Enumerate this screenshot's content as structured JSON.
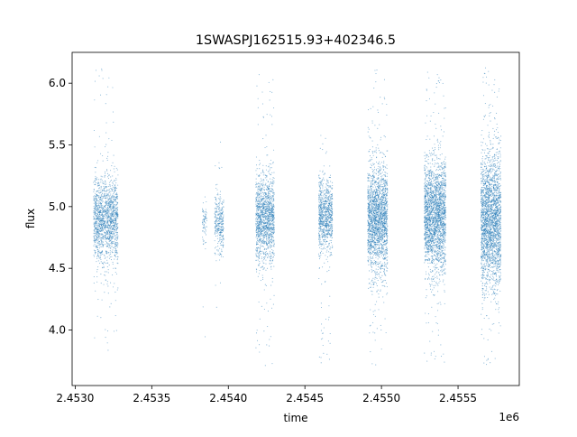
{
  "chart_data": {
    "type": "scatter",
    "title": "1SWASPJ162515.93+402346.5",
    "xlabel": "time",
    "ylabel": "flux",
    "x_offset_label": "1e6",
    "xlim": [
      2.45298,
      2.4559
    ],
    "ylim": [
      3.55,
      6.25
    ],
    "x_ticks": [
      2.453,
      2.4535,
      2.454,
      2.4545,
      2.455,
      2.4555
    ],
    "x_tick_labels": [
      "2.4530",
      "2.4535",
      "2.4540",
      "2.4545",
      "2.4550",
      "2.4555"
    ],
    "y_ticks": [
      4.0,
      4.5,
      5.0,
      5.5,
      6.0
    ],
    "y_tick_labels": [
      "4.0",
      "4.5",
      "5.0",
      "5.5",
      "6.0"
    ],
    "grid": false,
    "legend": "none",
    "marker_color": "#1f77b4",
    "series": [
      {
        "clusters": [
          {
            "x_start": 2.45312,
            "x_end": 2.45328,
            "center": 4.9,
            "spread": 0.17,
            "outlier_min": 3.72,
            "outlier_max": 6.12,
            "density": 1.0
          },
          {
            "x_start": 2.45383,
            "x_end": 2.45386,
            "center": 4.88,
            "spread": 0.08,
            "outlier_min": 3.78,
            "outlier_max": 6.1,
            "density": 0.25
          },
          {
            "x_start": 2.45391,
            "x_end": 2.45397,
            "center": 4.86,
            "spread": 0.12,
            "outlier_min": 4.1,
            "outlier_max": 5.55,
            "density": 0.55
          },
          {
            "x_start": 2.45418,
            "x_end": 2.4543,
            "center": 4.9,
            "spread": 0.18,
            "outlier_min": 3.7,
            "outlier_max": 6.1,
            "density": 1.2
          },
          {
            "x_start": 2.45459,
            "x_end": 2.45468,
            "center": 4.93,
            "spread": 0.15,
            "outlier_min": 3.7,
            "outlier_max": 5.6,
            "density": 1.0
          },
          {
            "x_start": 2.45491,
            "x_end": 2.45504,
            "center": 4.9,
            "spread": 0.22,
            "outlier_min": 3.7,
            "outlier_max": 6.12,
            "density": 1.6
          },
          {
            "x_start": 2.45528,
            "x_end": 2.45542,
            "center": 4.92,
            "spread": 0.23,
            "outlier_min": 3.7,
            "outlier_max": 6.14,
            "density": 1.7
          },
          {
            "x_start": 2.45565,
            "x_end": 2.45578,
            "center": 4.88,
            "spread": 0.27,
            "outlier_min": 3.7,
            "outlier_max": 6.14,
            "density": 1.9
          }
        ]
      }
    ]
  }
}
